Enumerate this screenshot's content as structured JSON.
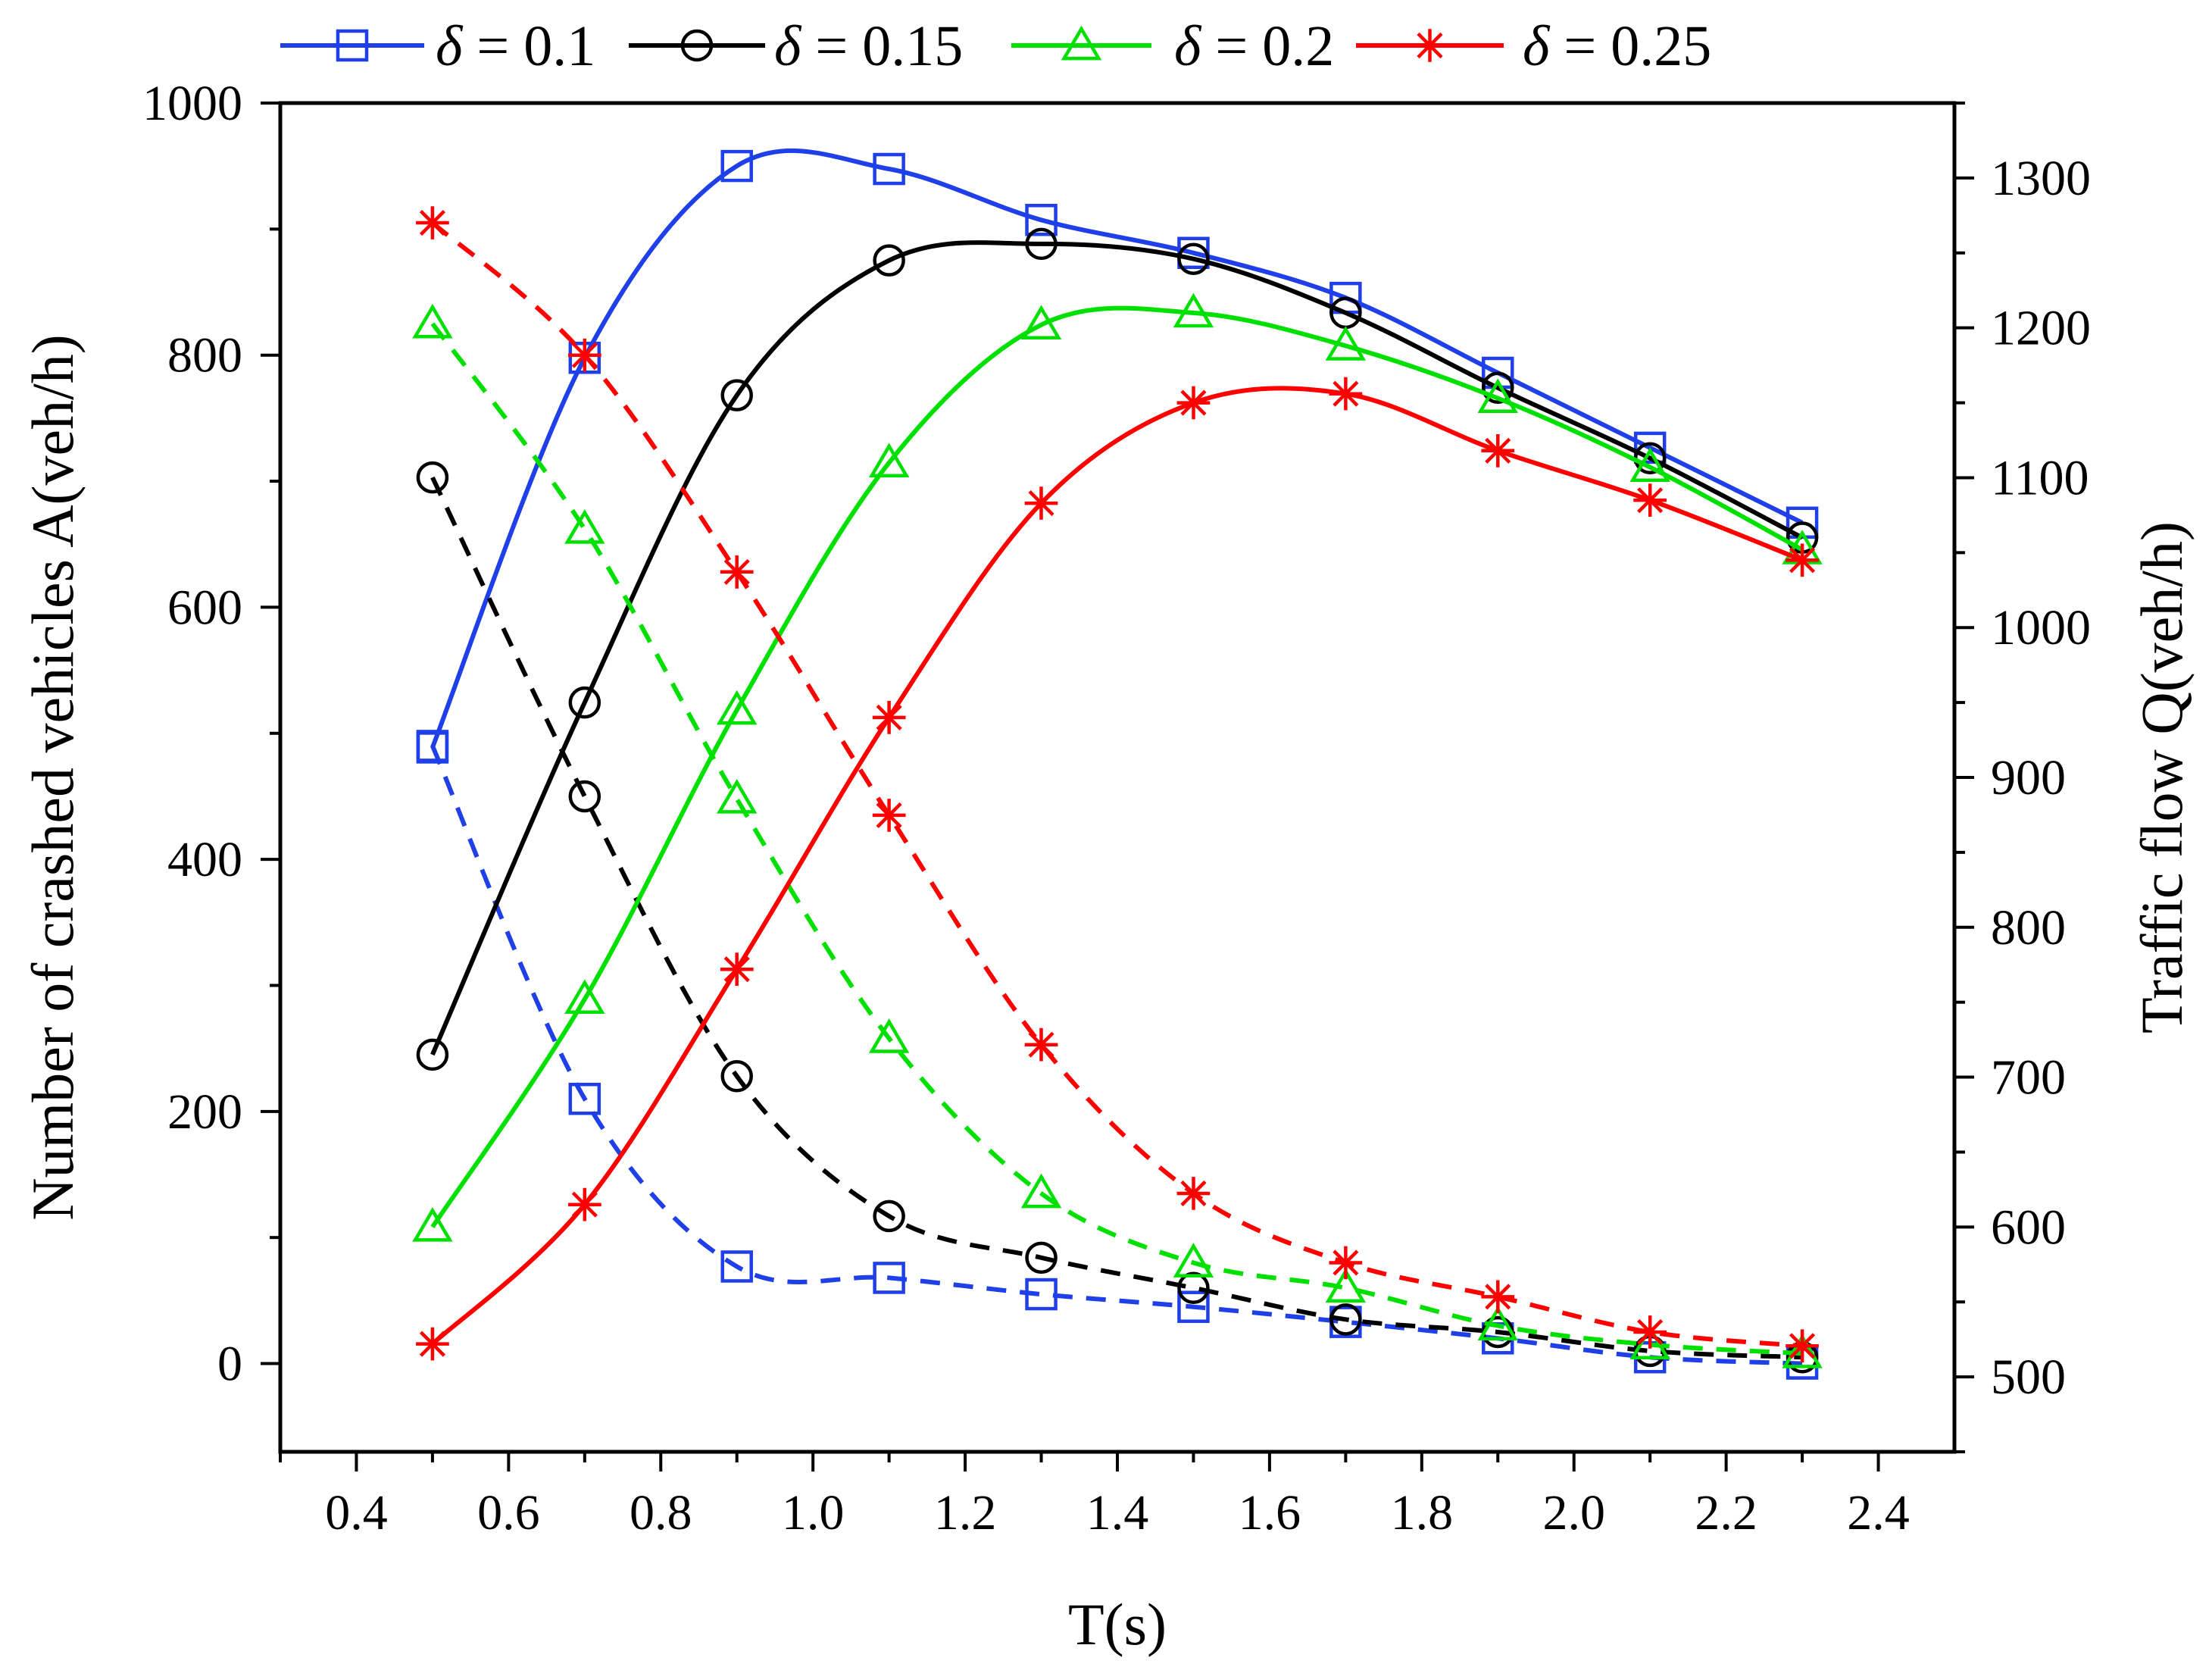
{
  "chart_data": {
    "type": "line",
    "title": "",
    "xlabel": "T(s)",
    "ylabel_left": "Number of crashed vehicles A(veh/h)",
    "ylabel_right": "Traffic flow Q(veh/h)",
    "x_ticks": [
      "0.4",
      "0.6",
      "0.8",
      "1.0",
      "1.2",
      "1.4",
      "1.6",
      "1.8",
      "2.0",
      "2.2",
      "2.4"
    ],
    "y_left_ticks": [
      "0",
      "200",
      "400",
      "600",
      "800",
      "1000"
    ],
    "y_right_ticks": [
      "500",
      "600",
      "700",
      "800",
      "900",
      "1000",
      "1100",
      "1200",
      "1300"
    ],
    "xlim": [
      0.3,
      2.5
    ],
    "ylim_left": [
      -70,
      1000
    ],
    "ylim_right": [
      450,
      1350
    ],
    "x": [
      0.5,
      0.7,
      0.9,
      1.1,
      1.3,
      1.5,
      1.7,
      1.9,
      2.1,
      2.3
    ],
    "legend_position": "top",
    "legend": [
      {
        "delta_symbol": "δ",
        "text": " = 0.1"
      },
      {
        "delta_symbol": "δ",
        "text": " = 0.15"
      },
      {
        "delta_symbol": "δ",
        "text": " = 0.2"
      },
      {
        "delta_symbol": "δ",
        "text": " = 0.25"
      }
    ],
    "series": [
      {
        "name": "δ = 0.1",
        "color": "#1f3fe8",
        "marker": "square",
        "flow_right_axis": [
          920,
          1180,
          1308,
          1306,
          1272,
          1250,
          1220,
          1170,
          1120,
          1070
        ],
        "crashed_left_axis": [
          490,
          210,
          77,
          68,
          55,
          45,
          33,
          20,
          5,
          0
        ]
      },
      {
        "name": "δ = 0.15",
        "color": "#000000",
        "marker": "circle",
        "flow_right_axis": [
          715,
          950,
          1155,
          1245,
          1256,
          1246,
          1210,
          1160,
          1113,
          1060
        ],
        "crashed_left_axis": [
          703,
          450,
          228,
          117,
          84,
          60,
          35,
          25,
          10,
          5
        ]
      },
      {
        "name": "δ = 0.2",
        "color": "#00e000",
        "marker": "triangle",
        "flow_right_axis": [
          600,
          752,
          945,
          1110,
          1202,
          1210,
          1188,
          1153,
          1107,
          1052
        ],
        "crashed_left_axis": [
          825,
          662,
          448,
          258,
          135,
          80,
          60,
          30,
          15,
          8
        ]
      },
      {
        "name": "δ = 0.25",
        "color": "#ff0000",
        "marker": "star",
        "flow_right_axis": [
          522,
          615,
          772,
          940,
          1083,
          1150,
          1156,
          1118,
          1085,
          1045
        ],
        "crashed_left_axis": [
          905,
          800,
          628,
          435,
          253,
          135,
          80,
          53,
          25,
          14
        ]
      }
    ]
  }
}
